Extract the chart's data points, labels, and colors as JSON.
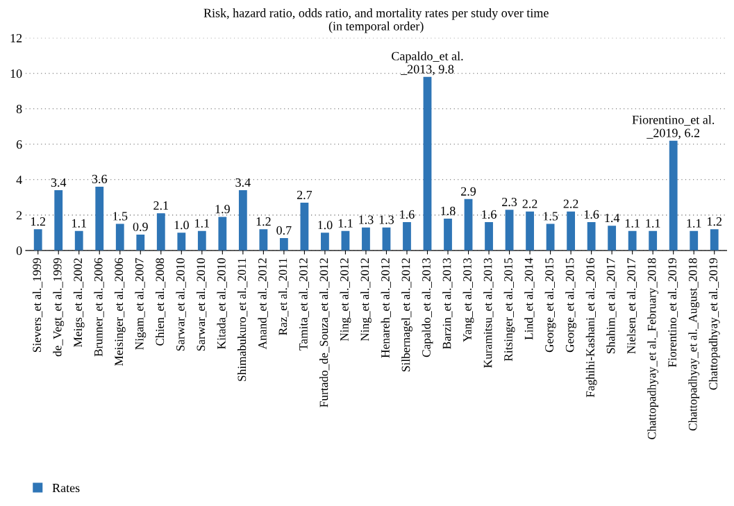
{
  "chart_data": {
    "type": "bar",
    "title": "Risk, hazard ratio, odds ratio, and mortality rates per study over time\n(in temporal order)",
    "categories": [
      "Sievers_et al._1999",
      "de_Vegt_et al._1999",
      "Meigs_et al._2002",
      "Brunner_et al._2006",
      "Meisinger_et al._2006",
      "Nigam_et al._2007",
      "Chien_et al._2008",
      "Sarwar_et al._2010",
      "Sarwar_et al._2010",
      "Kitada_et al._2010",
      "Shimabukuro_et al._2011",
      "Anand_et al._2012",
      "Raz_et al._2011",
      "Tamita_et al._2012",
      "Furtado_de_Souza_et al._2012",
      "Ning_et al._2012",
      "Ning_et al._2012",
      "Henareh_et al._2012",
      "Silbernagel_et al._2012",
      "Capaldo_et al._2013",
      "Barzin_et al._2013",
      "Yang_et al._2013",
      "Kuramitsu_et al._2013",
      "Ritsinger_et al._2015",
      "Lind_et al._2014",
      "George_et al._2015",
      "George_et al._2015",
      "Faghihi-Kashani_et al._2016",
      "Shahim_et al._2017",
      "Nielsen_et al._2017",
      "Chattopadhyay_et al._February_2018",
      "Fiorentino_et al._2019",
      "Chattopadhyay_et al._August_2018",
      "Chattopadhyay_et al._2019"
    ],
    "series": [
      {
        "name": "Rates",
        "color": "#2e75b6",
        "values": [
          1.2,
          3.4,
          1.1,
          3.6,
          1.5,
          0.9,
          2.1,
          1.0,
          1.1,
          1.9,
          3.4,
          1.2,
          0.7,
          2.7,
          1.0,
          1.1,
          1.3,
          1.3,
          1.6,
          9.8,
          1.8,
          2.9,
          1.6,
          2.3,
          2.2,
          1.5,
          2.2,
          1.6,
          1.4,
          1.1,
          1.1,
          6.2,
          1.1,
          1.2
        ],
        "value_labels": [
          "1.2",
          "3.4",
          "1.1",
          "3.6",
          "1.5",
          "0.9",
          "2.1",
          "1.0",
          "1.1",
          "1.9",
          "3.4",
          "1.2",
          "0.7",
          "2.7",
          "1.0",
          "1.1",
          "1.3",
          "1.3",
          "1.6",
          "Capaldo_et al.\n_2013, 9.8",
          "1.8",
          "2.9",
          "1.6",
          "2.3",
          "2.2",
          "1.5",
          "2.2",
          "1.6",
          "1.4",
          "1.1",
          "1.1",
          "Fiorentino_et al.\n_2019, 6.2",
          "1.1",
          "1.2"
        ]
      }
    ],
    "ylim": [
      0,
      12
    ],
    "yticks": [
      0,
      2,
      4,
      6,
      8,
      10,
      12
    ],
    "grid": "y",
    "legend": "bottom left"
  }
}
